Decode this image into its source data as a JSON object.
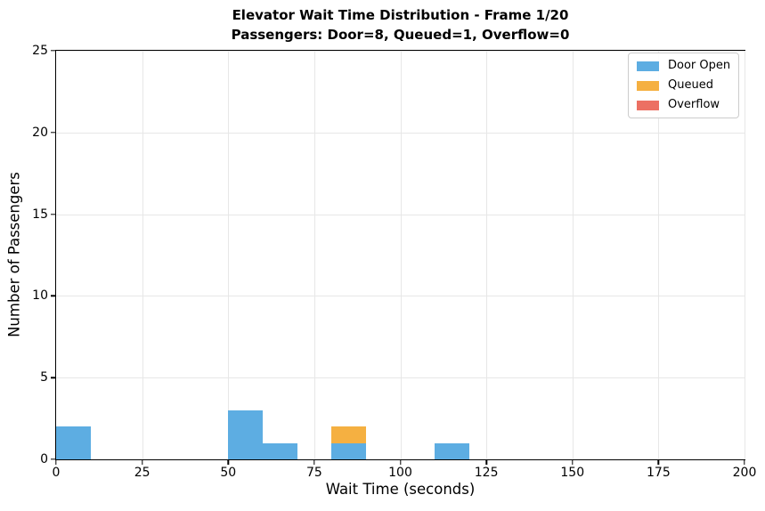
{
  "chart_data": {
    "type": "bar",
    "title": "Elevator Wait Time Distribution - Frame 1/20",
    "subtitle": "Passengers: Door=8, Queued=1, Overflow=0",
    "xlabel": "Wait Time (seconds)",
    "ylabel": "Number of Passengers",
    "xlim": [
      0,
      200
    ],
    "ylim": [
      0,
      25
    ],
    "xticks": [
      0,
      25,
      50,
      75,
      100,
      125,
      150,
      175,
      200
    ],
    "yticks": [
      0,
      5,
      10,
      15,
      20,
      25
    ],
    "bin_width": 10,
    "grid": true,
    "legend_position": "upper right",
    "series": [
      {
        "name": "Door Open",
        "color": "#5DADE2",
        "total": 8
      },
      {
        "name": "Queued",
        "color": "#F5B041",
        "total": 1
      },
      {
        "name": "Overflow",
        "color": "#EC7063",
        "total": 0
      }
    ],
    "bars": [
      {
        "series": "Door Open",
        "x0": 0,
        "x1": 10,
        "y0": 0,
        "y1": 2
      },
      {
        "series": "Door Open",
        "x0": 50,
        "x1": 60,
        "y0": 0,
        "y1": 3
      },
      {
        "series": "Door Open",
        "x0": 60,
        "x1": 70,
        "y0": 0,
        "y1": 1
      },
      {
        "series": "Door Open",
        "x0": 80,
        "x1": 90,
        "y0": 0,
        "y1": 1
      },
      {
        "series": "Queued",
        "x0": 80,
        "x1": 90,
        "y0": 1,
        "y1": 2
      },
      {
        "series": "Door Open",
        "x0": 110,
        "x1": 120,
        "y0": 0,
        "y1": 1
      }
    ],
    "colors": {
      "grid": "#e7e7e7",
      "spine": "#000000",
      "background": "#ffffff"
    }
  }
}
